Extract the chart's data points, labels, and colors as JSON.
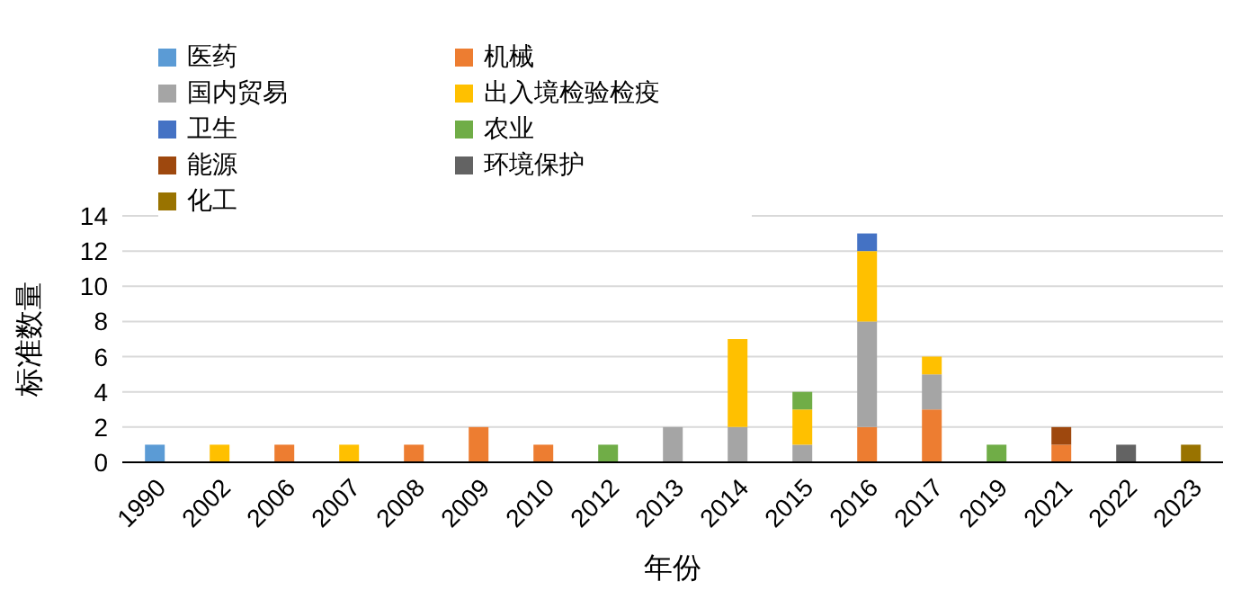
{
  "chart_data": {
    "type": "bar",
    "stacked": true,
    "xlabel": "年份",
    "ylabel": "标准数量",
    "categories": [
      "1990",
      "2002",
      "2006",
      "2007",
      "2008",
      "2009",
      "2010",
      "2012",
      "2013",
      "2014",
      "2015",
      "2016",
      "2017",
      "2019",
      "2021",
      "2022",
      "2023"
    ],
    "series": [
      {
        "name": "医药",
        "color": "#5b9bd5",
        "values": [
          1,
          null,
          null,
          null,
          null,
          null,
          null,
          null,
          null,
          null,
          null,
          null,
          null,
          null,
          null,
          null,
          null
        ]
      },
      {
        "name": "机械",
        "color": "#ed7d31",
        "values": [
          null,
          null,
          1,
          null,
          1,
          2,
          1,
          null,
          null,
          null,
          null,
          2,
          3,
          null,
          1,
          null,
          null
        ]
      },
      {
        "name": "国内贸易",
        "color": "#a5a5a5",
        "values": [
          null,
          null,
          null,
          null,
          null,
          null,
          null,
          null,
          2,
          2,
          1,
          6,
          2,
          null,
          null,
          null,
          null
        ]
      },
      {
        "name": "出入境检验检疫",
        "color": "#ffc000",
        "values": [
          null,
          1,
          null,
          1,
          null,
          null,
          null,
          null,
          null,
          5,
          2,
          4,
          1,
          null,
          null,
          null,
          null
        ]
      },
      {
        "name": "卫生",
        "color": "#4472c4",
        "values": [
          null,
          null,
          null,
          null,
          null,
          null,
          null,
          null,
          null,
          null,
          null,
          1,
          null,
          null,
          null,
          null,
          null
        ]
      },
      {
        "name": "农业",
        "color": "#70ad47",
        "values": [
          null,
          null,
          null,
          null,
          null,
          null,
          null,
          1,
          null,
          null,
          1,
          null,
          null,
          1,
          null,
          null,
          null
        ]
      },
      {
        "name": "能源",
        "color": "#9e480e",
        "values": [
          null,
          null,
          null,
          null,
          null,
          null,
          null,
          null,
          null,
          null,
          null,
          null,
          null,
          null,
          1,
          null,
          null
        ]
      },
      {
        "name": "环境保护",
        "color": "#636363",
        "values": [
          null,
          null,
          null,
          null,
          null,
          null,
          null,
          null,
          null,
          null,
          null,
          null,
          null,
          null,
          null,
          1,
          null
        ]
      },
      {
        "name": "化工",
        "color": "#997300",
        "values": [
          null,
          null,
          null,
          null,
          null,
          null,
          null,
          null,
          null,
          null,
          null,
          null,
          null,
          null,
          null,
          null,
          1
        ]
      }
    ],
    "ylim": [
      0,
      14
    ],
    "yticks": [
      0,
      2,
      4,
      6,
      8,
      10,
      12,
      14
    ],
    "grid": "y",
    "legend": "top left"
  }
}
